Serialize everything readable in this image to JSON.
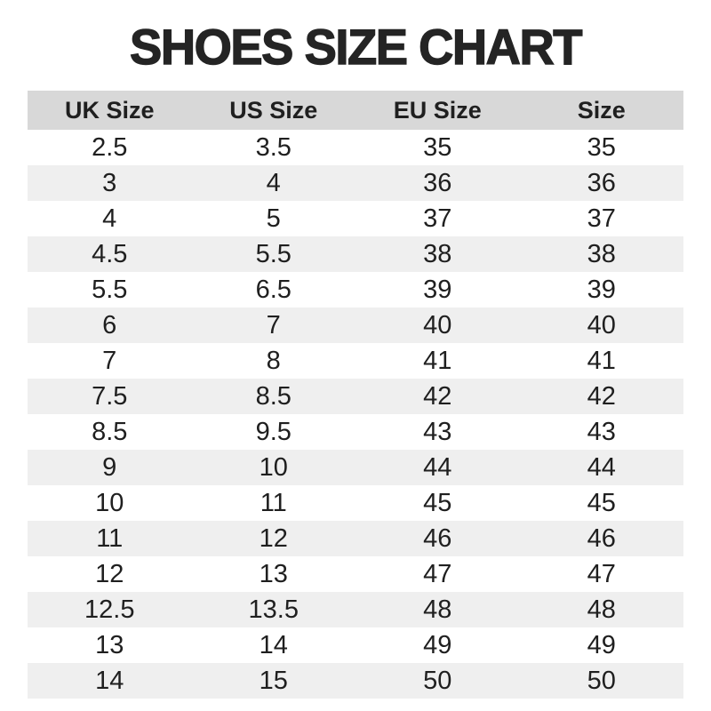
{
  "title": "SHOES SIZE CHART",
  "chart_data": {
    "type": "table",
    "title": "SHOES SIZE CHART",
    "columns": [
      "UK Size",
      "US Size",
      "EU Size",
      "Size"
    ],
    "rows": [
      [
        "2.5",
        "3.5",
        "35",
        "35"
      ],
      [
        "3",
        "4",
        "36",
        "36"
      ],
      [
        "4",
        "5",
        "37",
        "37"
      ],
      [
        "4.5",
        "5.5",
        "38",
        "38"
      ],
      [
        "5.5",
        "6.5",
        "39",
        "39"
      ],
      [
        "6",
        "7",
        "40",
        "40"
      ],
      [
        "7",
        "8",
        "41",
        "41"
      ],
      [
        "7.5",
        "8.5",
        "42",
        "42"
      ],
      [
        "8.5",
        "9.5",
        "43",
        "43"
      ],
      [
        "9",
        "10",
        "44",
        "44"
      ],
      [
        "10",
        "11",
        "45",
        "45"
      ],
      [
        "11",
        "12",
        "46",
        "46"
      ],
      [
        "12",
        "13",
        "47",
        "47"
      ],
      [
        "12.5",
        "13.5",
        "48",
        "48"
      ],
      [
        "13",
        "14",
        "49",
        "49"
      ],
      [
        "14",
        "15",
        "50",
        "50"
      ]
    ],
    "layout": {
      "legend": "none",
      "grid": "off",
      "stripe_style": "alternating-rows"
    }
  },
  "colors": {
    "page_bg": "#ffffff",
    "header_bg": "#d8d8d8",
    "stripe_bg": "#efefef",
    "text": "#1f1f1f",
    "title": "#242424"
  }
}
